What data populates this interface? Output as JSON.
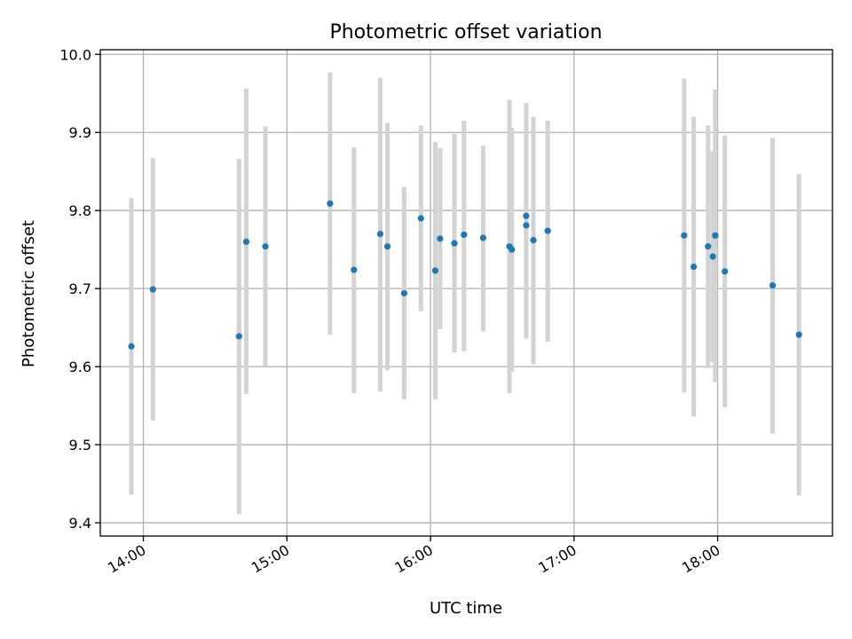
{
  "chart_data": {
    "type": "scatter",
    "title": "Photometric offset variation",
    "xlabel": "UTC time",
    "ylabel": "Photometric offset",
    "x_type": "time",
    "xlim": [
      "13:42",
      "18:48"
    ],
    "ylim": [
      9.383,
      10.006
    ],
    "x_ticks": [
      "14:00",
      "15:00",
      "16:00",
      "17:00",
      "18:00"
    ],
    "y_ticks": [
      9.4,
      9.5,
      9.6,
      9.7,
      9.8,
      9.9,
      10.0
    ],
    "grid": true,
    "marker_color": "#1f77b4",
    "errorbar_color": "#d3d3d3",
    "points": [
      {
        "x": "13:55",
        "y": 9.626,
        "ylow": 9.436,
        "yhigh": 9.816
      },
      {
        "x": "14:04",
        "y": 9.699,
        "ylow": 9.531,
        "yhigh": 9.867
      },
      {
        "x": "14:40",
        "y": 9.639,
        "ylow": 9.411,
        "yhigh": 9.866
      },
      {
        "x": "14:43",
        "y": 9.76,
        "ylow": 9.565,
        "yhigh": 9.956
      },
      {
        "x": "14:51",
        "y": 9.754,
        "ylow": 9.601,
        "yhigh": 9.908
      },
      {
        "x": "15:18",
        "y": 9.809,
        "ylow": 9.641,
        "yhigh": 9.977
      },
      {
        "x": "15:28",
        "y": 9.724,
        "ylow": 9.566,
        "yhigh": 9.881
      },
      {
        "x": "15:39",
        "y": 9.77,
        "ylow": 9.568,
        "yhigh": 9.97
      },
      {
        "x": "15:42",
        "y": 9.754,
        "ylow": 9.595,
        "yhigh": 9.912
      },
      {
        "x": "15:49",
        "y": 9.694,
        "ylow": 9.558,
        "yhigh": 9.83
      },
      {
        "x": "15:56",
        "y": 9.79,
        "ylow": 9.671,
        "yhigh": 9.909
      },
      {
        "x": "16:02",
        "y": 9.723,
        "ylow": 9.558,
        "yhigh": 9.888
      },
      {
        "x": "16:04",
        "y": 9.764,
        "ylow": 9.648,
        "yhigh": 9.88
      },
      {
        "x": "16:10",
        "y": 9.758,
        "ylow": 9.618,
        "yhigh": 9.898
      },
      {
        "x": "16:14",
        "y": 9.769,
        "ylow": 9.62,
        "yhigh": 9.915
      },
      {
        "x": "16:22",
        "y": 9.765,
        "ylow": 9.645,
        "yhigh": 9.883
      },
      {
        "x": "16:33",
        "y": 9.754,
        "ylow": 9.566,
        "yhigh": 9.942
      },
      {
        "x": "16:34",
        "y": 9.75,
        "ylow": 9.594,
        "yhigh": 9.906
      },
      {
        "x": "16:40",
        "y": 9.793,
        "ylow": 9.648,
        "yhigh": 9.938
      },
      {
        "x": "16:40",
        "y": 9.781,
        "ylow": 9.636,
        "yhigh": 9.926
      },
      {
        "x": "16:43",
        "y": 9.762,
        "ylow": 9.603,
        "yhigh": 9.92
      },
      {
        "x": "16:49",
        "y": 9.774,
        "ylow": 9.632,
        "yhigh": 9.915
      },
      {
        "x": "17:46",
        "y": 9.768,
        "ylow": 9.567,
        "yhigh": 9.969
      },
      {
        "x": "17:50",
        "y": 9.728,
        "ylow": 9.536,
        "yhigh": 9.92
      },
      {
        "x": "17:56",
        "y": 9.754,
        "ylow": 9.598,
        "yhigh": 9.909
      },
      {
        "x": "17:58",
        "y": 9.741,
        "ylow": 9.606,
        "yhigh": 9.876
      },
      {
        "x": "17:59",
        "y": 9.768,
        "ylow": 9.58,
        "yhigh": 9.955
      },
      {
        "x": "18:03",
        "y": 9.722,
        "ylow": 9.548,
        "yhigh": 9.896
      },
      {
        "x": "18:23",
        "y": 9.704,
        "ylow": 9.514,
        "yhigh": 9.893
      },
      {
        "x": "18:34",
        "y": 9.641,
        "ylow": 9.435,
        "yhigh": 9.847
      }
    ]
  }
}
